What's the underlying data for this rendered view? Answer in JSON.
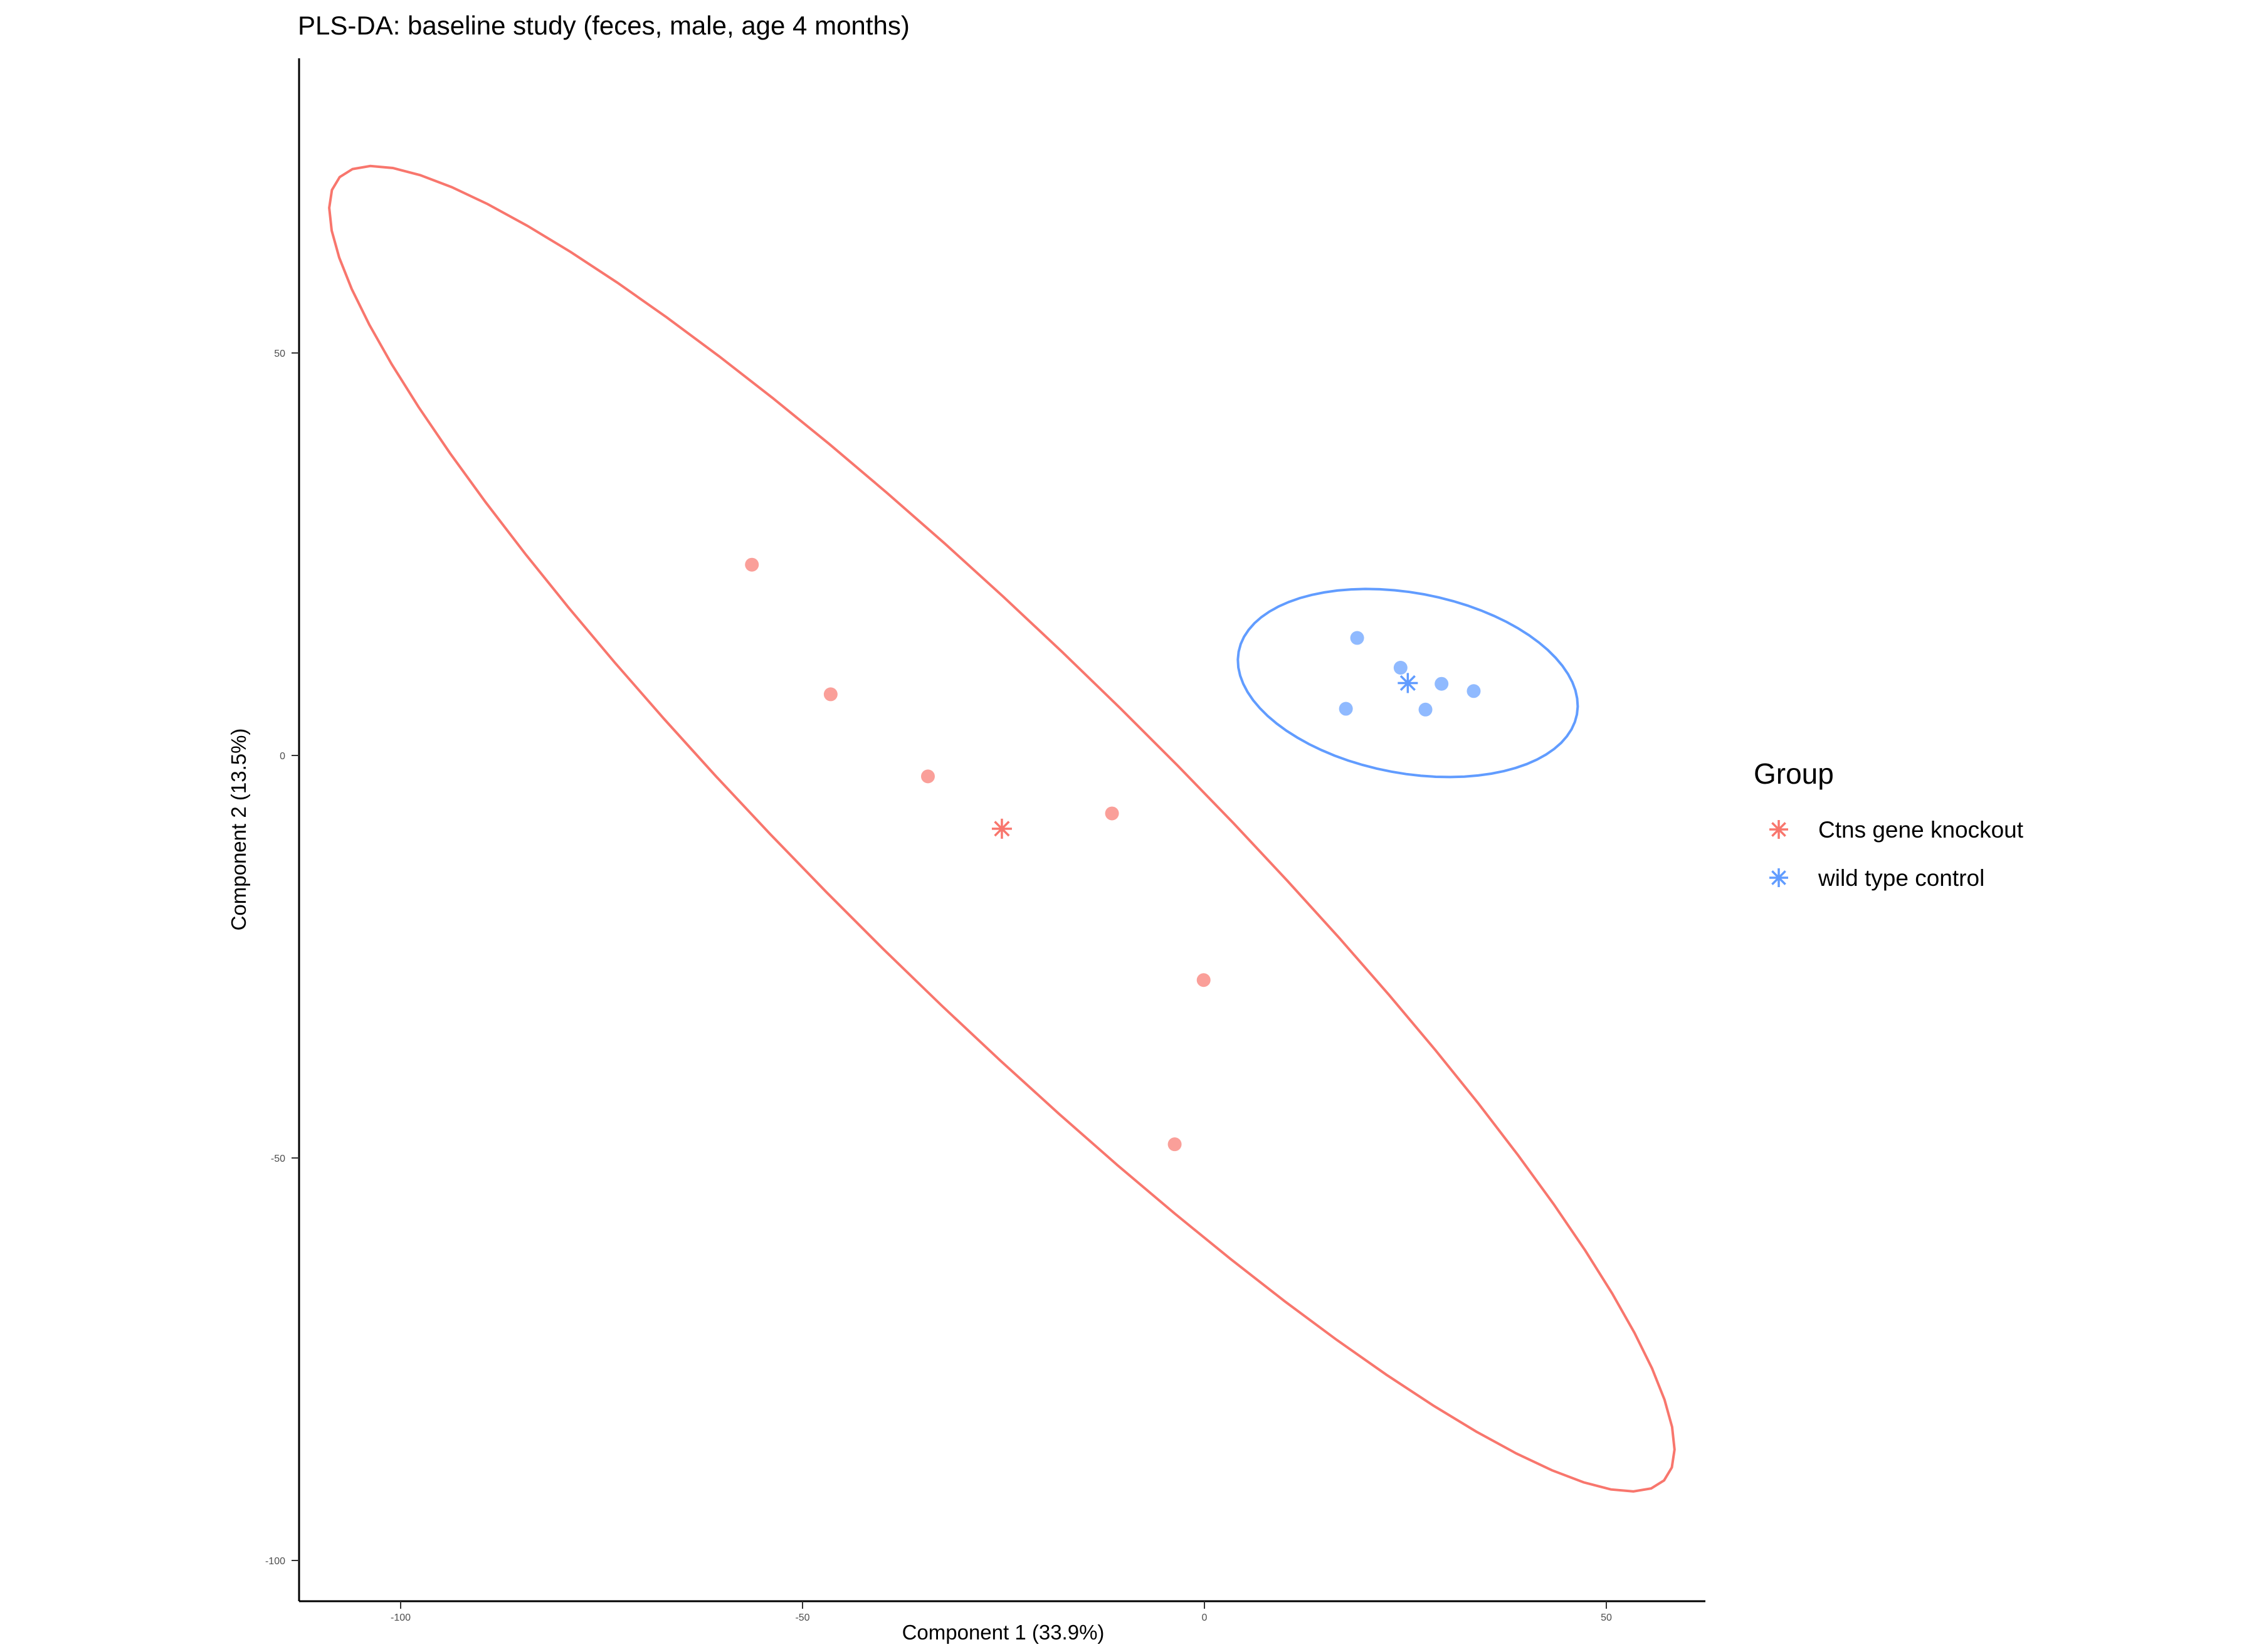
{
  "chart_data": {
    "type": "scatter",
    "title": "PLS-DA: baseline study (feces, male, age 4 months)",
    "xlabel": "Component 1 (33.9%)",
    "ylabel": "Component 2 (13.5%)",
    "xlim": [
      -112,
      62
    ],
    "ylim": [
      -105,
      86
    ],
    "x_ticks": [
      -100,
      -50,
      0,
      50
    ],
    "x_tick_labels": [
      "-100",
      "-50",
      "0",
      "50"
    ],
    "y_ticks": [
      -100,
      -50,
      0,
      50
    ],
    "y_tick_labels": [
      "-100",
      "-50",
      "0",
      "50"
    ],
    "grid": false,
    "legend": {
      "title": "Group",
      "position": "right",
      "entries": [
        "Ctns gene knockout",
        "wild type control"
      ]
    },
    "series": [
      {
        "name": "Ctns gene knockout",
        "color": "#F8766D",
        "points": [
          {
            "x": -56.3,
            "y": 23.7
          },
          {
            "x": -46.5,
            "y": 7.6
          },
          {
            "x": -34.4,
            "y": -2.6
          },
          {
            "x": -11.5,
            "y": -7.2
          },
          {
            "x": -0.1,
            "y": -27.9
          },
          {
            "x": -3.7,
            "y": -48.3
          }
        ],
        "centroid": {
          "x": -25.2,
          "y": -9.1
        },
        "ellipse": {
          "cx": -25.2,
          "cy": -9.1,
          "a": 115.5,
          "b": 21.0,
          "angle_deg": -44.5
        }
      },
      {
        "name": "wild type control",
        "color": "#619CFF",
        "points": [
          {
            "x": 19.0,
            "y": 14.6
          },
          {
            "x": 24.4,
            "y": 10.9
          },
          {
            "x": 29.5,
            "y": 8.9
          },
          {
            "x": 33.5,
            "y": 8.0
          },
          {
            "x": 27.5,
            "y": 5.7
          },
          {
            "x": 17.6,
            "y": 5.8
          }
        ],
        "centroid": {
          "x": 25.3,
          "y": 9.0
        },
        "ellipse": {
          "cx": 25.3,
          "cy": 9.0,
          "a": 21.4,
          "b": 11.2,
          "angle_deg": -10.5
        }
      }
    ]
  }
}
